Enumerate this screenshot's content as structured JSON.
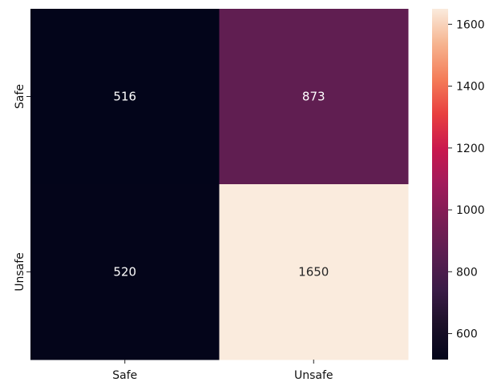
{
  "chart_data": {
    "type": "heatmap",
    "title": "",
    "xlabel": "",
    "ylabel": "",
    "x_categories": [
      "Safe",
      "Unsafe"
    ],
    "y_categories": [
      "Safe",
      "Unsafe"
    ],
    "values": [
      [
        516,
        873
      ],
      [
        520,
        1650
      ]
    ],
    "colormap": "rocket",
    "colorbar": {
      "range": [
        516,
        1650
      ],
      "ticks": [
        600,
        800,
        1000,
        1200,
        1400,
        1600
      ],
      "tick_labels": [
        "600",
        "800",
        "1000",
        "1200",
        "1400",
        "1600"
      ]
    },
    "annotations": true,
    "grid": false,
    "colors": {
      "low": "#03051a",
      "high": "#faebdd",
      "text_on_dark": "#ffffff",
      "text_on_light": "#262626"
    }
  }
}
